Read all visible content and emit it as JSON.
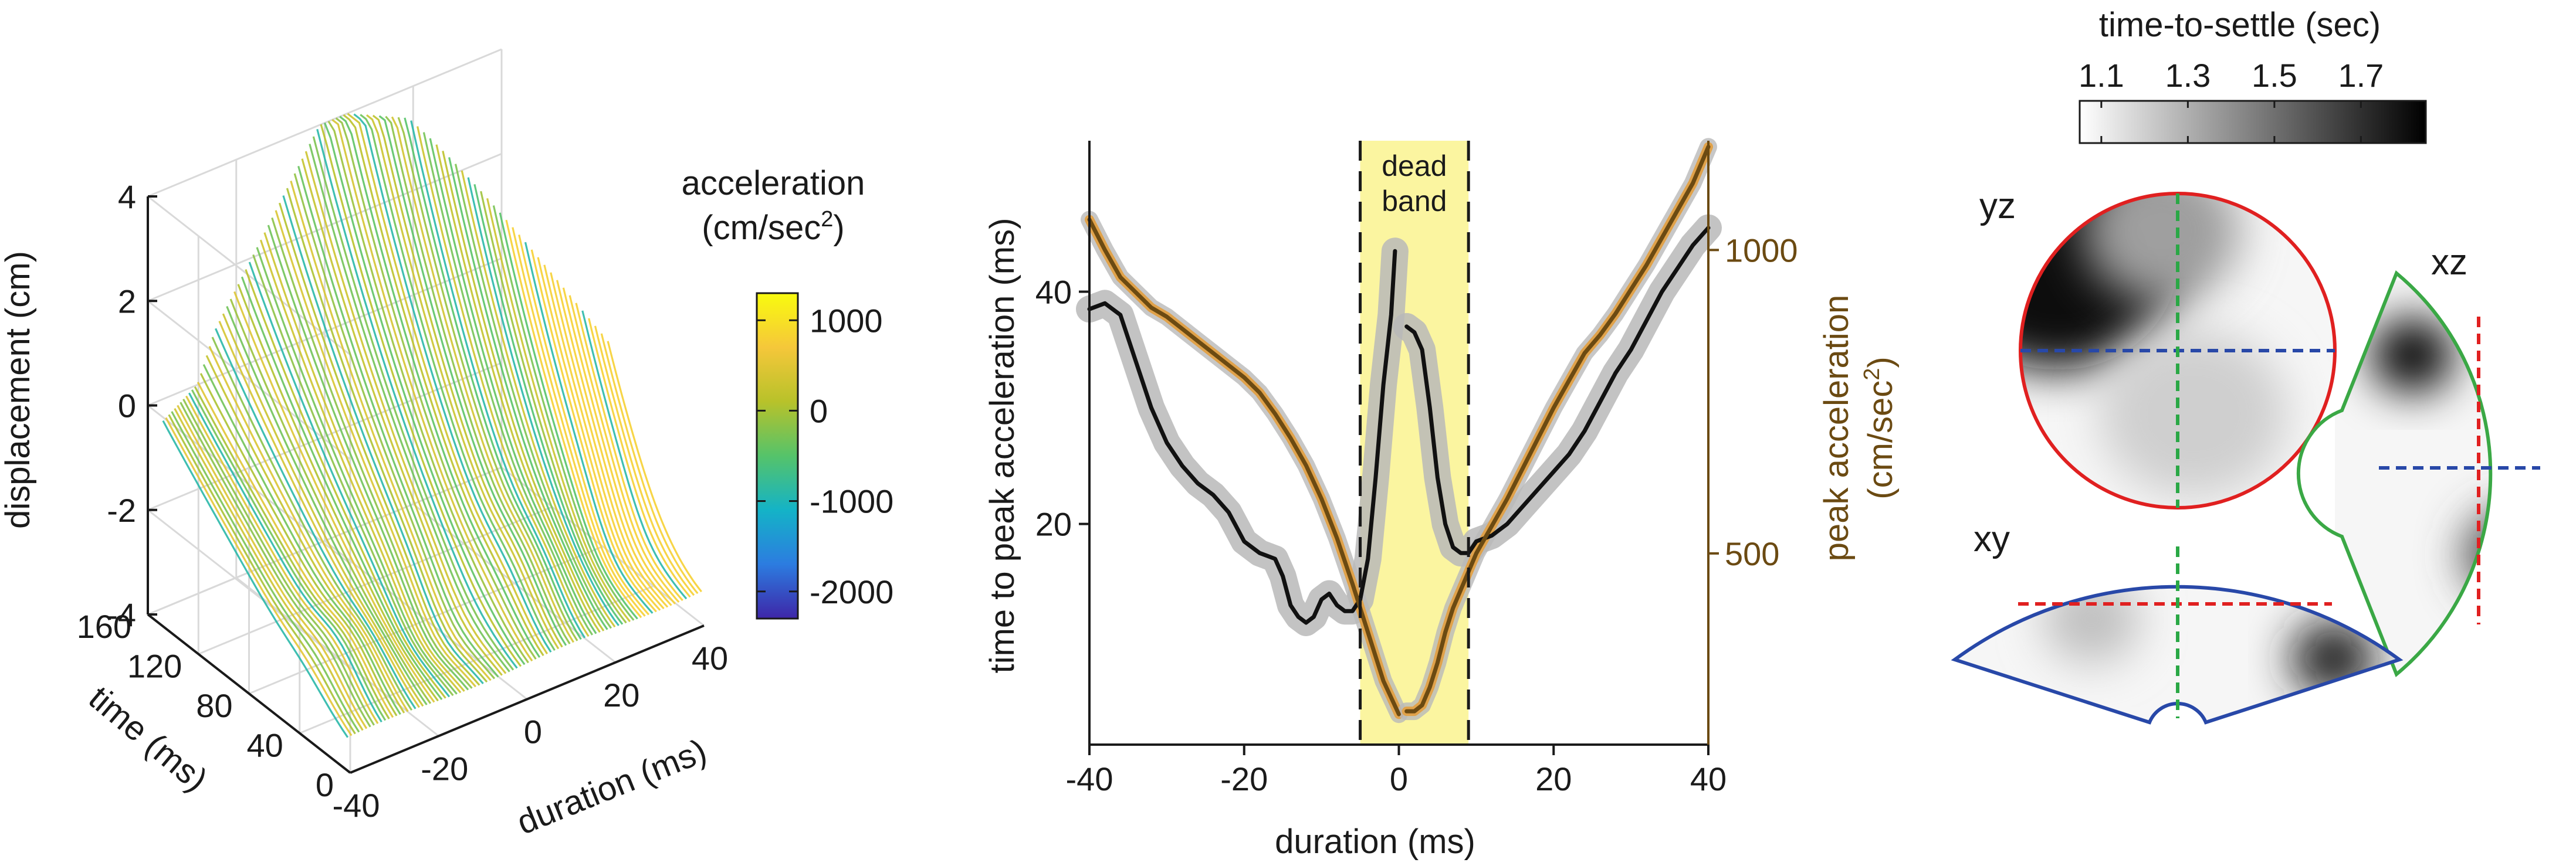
{
  "colors": {
    "ink": "#1a1a1a",
    "dead_band_fill": "#fbf5a0",
    "black_curve": "#111111",
    "brown_curve": "#6b4a12",
    "orange_halo": "#e0a24a",
    "gray_band": "#b9b9b9",
    "yz_border": "#e02020",
    "xy_border": "#2848a8",
    "xz_border": "#3aa845",
    "dash_red": "#e02020",
    "dash_blue": "#2848a8",
    "dash_green": "#2aa845"
  },
  "chart_data": [
    {
      "type": "surface3d",
      "zlabel": "displacement (cm)",
      "ylabel": "time (ms)",
      "xlabel": "duration (ms)",
      "z_ticks": [
        "4",
        "2",
        "0",
        "-2",
        "-4"
      ],
      "y_ticks": [
        "160",
        "120",
        "80",
        "40",
        "0"
      ],
      "x_ticks": [
        "-40",
        "-20",
        "0",
        "20",
        "40"
      ],
      "zlim": [
        -4,
        4
      ],
      "ylim": [
        0,
        160
      ],
      "xlim": [
        -40,
        40
      ],
      "colorbar": {
        "title_line1": "acceleration",
        "title_line2": "(cm/sec",
        "title_sup": "2",
        "title_close": ")",
        "ticks": [
          "1000",
          "0",
          "-1000",
          "-2000"
        ],
        "range": [
          -2300,
          1300
        ],
        "colormap": "parula",
        "stops": [
          "#3e26a8",
          "#2c7ce0",
          "#14b3c7",
          "#55c36a",
          "#b8c22a",
          "#f5c73a",
          "#f9fb0e"
        ]
      }
    },
    {
      "type": "line",
      "xlabel": "duration (ms)",
      "ylabel_left": "time to peak acceleration (ms)",
      "ylabel_right_line1": "peak acceleration",
      "ylabel_right_line2": "(cm/sec",
      "ylabel_right_sup": "2",
      "ylabel_right_close": ")",
      "xlim": [
        -40,
        40
      ],
      "ylim_left": [
        1,
        53
      ],
      "ylim_right": [
        185,
        1180
      ],
      "x_ticks": [
        "-40",
        "-20",
        "0",
        "20",
        "40"
      ],
      "x_tick_values": [
        -40,
        -20,
        0,
        20,
        40
      ],
      "left_ticks": [
        "20",
        "40"
      ],
      "left_tick_values": [
        20,
        40
      ],
      "right_ticks": [
        "500",
        "1000"
      ],
      "right_tick_values": [
        500,
        1000
      ],
      "dead_band": {
        "x0": -5,
        "x1": 9,
        "label_line1": "dead",
        "label_line2": "band"
      },
      "series": [
        {
          "axis": "left",
          "color": "black",
          "segments": [
            [
              [
                -40,
                38.5
              ],
              [
                -38,
                39
              ],
              [
                -36,
                38
              ],
              [
                -34,
                34
              ],
              [
                -32,
                30
              ],
              [
                -30,
                27
              ],
              [
                -28,
                25
              ],
              [
                -26,
                23.5
              ],
              [
                -24,
                22.5
              ],
              [
                -22,
                21
              ],
              [
                -20,
                18.5
              ],
              [
                -18,
                17.5
              ],
              [
                -16,
                17
              ],
              [
                -15,
                15.5
              ],
              [
                -14,
                13
              ],
              [
                -13,
                12
              ],
              [
                -12,
                11.5
              ],
              [
                -11,
                12
              ],
              [
                -10,
                13.5
              ],
              [
                -9,
                14
              ],
              [
                -8,
                13
              ],
              [
                -7,
                12.5
              ],
              [
                -6,
                12.5
              ],
              [
                -5,
                13.5
              ],
              [
                -4,
                17
              ],
              [
                -3,
                24
              ],
              [
                -2,
                32
              ],
              [
                -1,
                38
              ],
              [
                -0.5,
                43.5
              ]
            ],
            [
              [
                1,
                37
              ],
              [
                2,
                36.5
              ],
              [
                3,
                35
              ],
              [
                4,
                30
              ],
              [
                5,
                24
              ],
              [
                6,
                20
              ],
              [
                7,
                18
              ],
              [
                8,
                17.5
              ],
              [
                9,
                17.5
              ],
              [
                10,
                18.5
              ],
              [
                12,
                19
              ],
              [
                14,
                20
              ],
              [
                16,
                21.5
              ],
              [
                18,
                23
              ],
              [
                20,
                24.5
              ],
              [
                22,
                26
              ],
              [
                24,
                28
              ],
              [
                26,
                30.5
              ],
              [
                28,
                33
              ],
              [
                30,
                35
              ],
              [
                32,
                37.5
              ],
              [
                34,
                40
              ],
              [
                36,
                42
              ],
              [
                38,
                44
              ],
              [
                40,
                45.5
              ]
            ]
          ]
        },
        {
          "axis": "right",
          "color": "brown",
          "segments": [
            [
              [
                -40,
                1050
              ],
              [
                -38,
                1000
              ],
              [
                -36,
                955
              ],
              [
                -34,
                930
              ],
              [
                -32,
                905
              ],
              [
                -30,
                890
              ],
              [
                -28,
                870
              ],
              [
                -26,
                850
              ],
              [
                -24,
                830
              ],
              [
                -22,
                810
              ],
              [
                -20,
                790
              ],
              [
                -18,
                765
              ],
              [
                -16,
                730
              ],
              [
                -14,
                690
              ],
              [
                -12,
                645
              ],
              [
                -10,
                590
              ],
              [
                -8,
                525
              ],
              [
                -6,
                450
              ],
              [
                -4,
                370
              ],
              [
                -2,
                290
              ],
              [
                0,
                235
              ]
            ],
            [
              [
                1,
                240
              ],
              [
                2,
                240
              ],
              [
                3,
                250
              ],
              [
                4,
                280
              ],
              [
                5,
                320
              ],
              [
                6,
                370
              ],
              [
                7,
                410
              ],
              [
                8,
                440
              ],
              [
                9,
                470
              ],
              [
                10,
                500
              ],
              [
                12,
                545
              ],
              [
                14,
                590
              ],
              [
                16,
                640
              ],
              [
                18,
                690
              ],
              [
                20,
                740
              ],
              [
                22,
                785
              ],
              [
                24,
                830
              ],
              [
                26,
                860
              ],
              [
                28,
                895
              ],
              [
                30,
                935
              ],
              [
                32,
                975
              ],
              [
                34,
                1020
              ],
              [
                36,
                1065
              ],
              [
                38,
                1110
              ],
              [
                40,
                1170
              ]
            ]
          ]
        }
      ]
    },
    {
      "type": "heatmap",
      "colorbar": {
        "title": "time-to-settle (sec)",
        "ticks": [
          "1.1",
          "1.3",
          "1.5",
          "1.7"
        ],
        "range": [
          1.05,
          1.85
        ],
        "stops": [
          "#ffffff",
          "#000000"
        ]
      },
      "panels": [
        {
          "label": "yz",
          "blobs": [
            {
              "u": 0.12,
              "v": 0.22,
              "r": 0.38,
              "level": 1.8
            },
            {
              "u": 0.45,
              "v": 0.12,
              "r": 0.25,
              "level": 1.35
            },
            {
              "u": 0.55,
              "v": 0.7,
              "r": 0.3,
              "level": 1.2
            }
          ]
        },
        {
          "label": "xz",
          "blobs": [
            {
              "u": 0.35,
              "v": 0.2,
              "r": 0.22,
              "level": 1.85
            },
            {
              "u": 0.9,
              "v": 0.7,
              "r": 0.28,
              "level": 1.6
            }
          ]
        },
        {
          "label": "xy",
          "blobs": [
            {
              "u": 0.85,
              "v": 0.6,
              "r": 0.22,
              "level": 1.75
            },
            {
              "u": 0.3,
              "v": 0.4,
              "r": 0.25,
              "level": 1.25
            }
          ]
        }
      ]
    }
  ]
}
